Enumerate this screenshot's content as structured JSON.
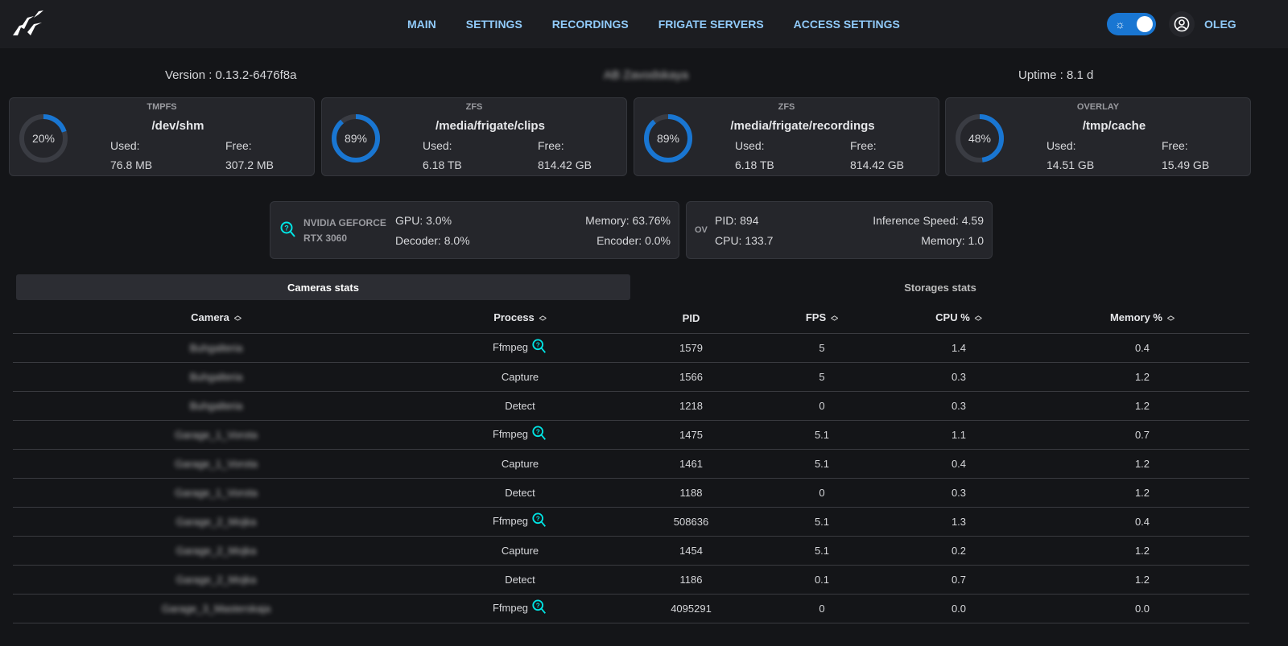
{
  "header": {
    "nav": [
      "MAIN",
      "SETTINGS",
      "RECORDINGS",
      "FRIGATE SERVERS",
      "ACCESS SETTINGS"
    ],
    "user": "OLEG",
    "theme_icon": "sun-icon",
    "accent": "#1976d2"
  },
  "info": {
    "version": "Version : 0.13.2-6476f8a",
    "host": "AB Zavodskaya",
    "uptime": "Uptime : 8.1 d"
  },
  "storages": [
    {
      "type": "TMPFS",
      "path": "/dev/shm",
      "percent": 20,
      "used_label": "Used:",
      "used": "76.8 MB",
      "free_label": "Free:",
      "free": "307.2 MB"
    },
    {
      "type": "ZFS",
      "path": "/media/frigate/clips",
      "percent": 89,
      "used_label": "Used:",
      "used": "6.18 TB",
      "free_label": "Free:",
      "free": "814.42 GB"
    },
    {
      "type": "ZFS",
      "path": "/media/frigate/recordings",
      "percent": 89,
      "used_label": "Used:",
      "used": "6.18 TB",
      "free_label": "Free:",
      "free": "814.42 GB"
    },
    {
      "type": "OVERLAY",
      "path": "/tmp/cache",
      "percent": 48,
      "used_label": "Used:",
      "used": "14.51 GB",
      "free_label": "Free:",
      "free": "15.49 GB"
    }
  ],
  "gpu": {
    "name1": "NVIDIA GEFORCE",
    "name2": "RTX 3060",
    "gpu": "GPU: 3.0%",
    "decoder": "Decoder: 8.0%",
    "memory": "Memory: 63.76%",
    "encoder": "Encoder: 0.0%"
  },
  "detector": {
    "name": "OV",
    "pid": "PID: 894",
    "cpu": "CPU: 133.7",
    "speed": "Inference Speed: 4.59",
    "memory": "Memory: 1.0"
  },
  "tabs": {
    "cameras": "Cameras stats",
    "storages": "Storages stats"
  },
  "table": {
    "headers": [
      "Camera",
      "Process",
      "PID",
      "FPS",
      "CPU %",
      "Memory %"
    ],
    "rows": [
      [
        "Buhgalteria",
        "Ffmpeg",
        "1579",
        "5",
        "1.4",
        "0.4"
      ],
      [
        "Buhgalteria",
        "Capture",
        "1566",
        "5",
        "0.3",
        "1.2"
      ],
      [
        "Buhgalteria",
        "Detect",
        "1218",
        "0",
        "0.3",
        "1.2"
      ],
      [
        "Garage_1_Vorota",
        "Ffmpeg",
        "1475",
        "5.1",
        "1.1",
        "0.7"
      ],
      [
        "Garage_1_Vorota",
        "Capture",
        "1461",
        "5.1",
        "0.4",
        "1.2"
      ],
      [
        "Garage_1_Vorota",
        "Detect",
        "1188",
        "0",
        "0.3",
        "1.2"
      ],
      [
        "Garage_2_Mojka",
        "Ffmpeg",
        "508636",
        "5.1",
        "1.3",
        "0.4"
      ],
      [
        "Garage_2_Mojka",
        "Capture",
        "1454",
        "5.1",
        "0.2",
        "1.2"
      ],
      [
        "Garage_2_Mojka",
        "Detect",
        "1186",
        "0.1",
        "0.7",
        "1.2"
      ],
      [
        "Garage_3_Masterskaja",
        "Ffmpeg",
        "4095291",
        "0",
        "0.0",
        "0.0"
      ]
    ]
  }
}
